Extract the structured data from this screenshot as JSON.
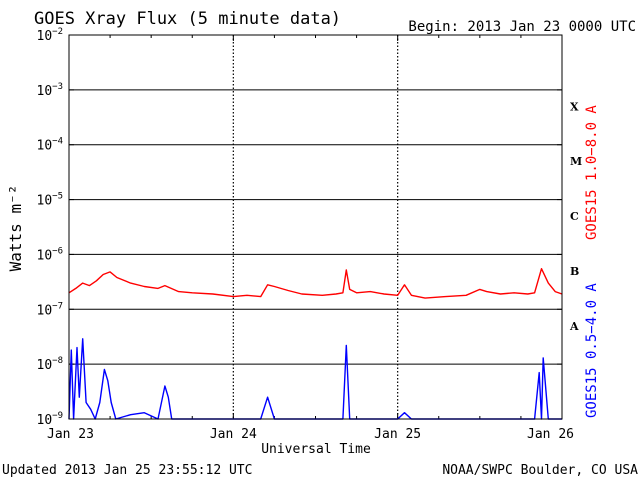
{
  "header": {
    "title": "GOES Xray Flux (5 minute data)",
    "begin": "Begin:  2013 Jan 23 0000 UTC"
  },
  "footer": {
    "updated": "Updated 2013 Jan 25 23:55:12 UTC",
    "credit": "NOAA/SWPC Boulder, CO USA"
  },
  "chart_data": {
    "type": "line",
    "title": "GOES Xray Flux (5 minute data)",
    "xlabel": "Universal Time",
    "ylabel": "Watts m⁻²",
    "y_scale": "log",
    "ylim": [
      1e-09,
      0.01
    ],
    "y_ticks": [
      {
        "value": 1e-09,
        "mant": "10",
        "exp": "−9"
      },
      {
        "value": 1e-08,
        "mant": "10",
        "exp": "−8"
      },
      {
        "value": 1e-07,
        "mant": "10",
        "exp": "−7"
      },
      {
        "value": 1e-06,
        "mant": "10",
        "exp": "−6"
      },
      {
        "value": 1e-05,
        "mant": "10",
        "exp": "−5"
      },
      {
        "value": 0.0001,
        "mant": "10",
        "exp": "−4"
      },
      {
        "value": 0.001,
        "mant": "10",
        "exp": "−3"
      },
      {
        "value": 0.01,
        "mant": "10",
        "exp": "−2"
      }
    ],
    "xlim": [
      "2013-01-23T00:00",
      "2013-01-26T00:00"
    ],
    "x_ticks": [
      {
        "value": "2013-01-23T00:00",
        "label": "Jan 23"
      },
      {
        "value": "2013-01-24T00:00",
        "label": "Jan 24"
      },
      {
        "value": "2013-01-25T00:00",
        "label": "Jan 25"
      },
      {
        "value": "2013-01-26T00:00",
        "label": "Jan 26"
      }
    ],
    "flare_classes": [
      {
        "label": "X",
        "value": 0.0005
      },
      {
        "label": "M",
        "value": 5e-05
      },
      {
        "label": "C",
        "value": 5e-06
      },
      {
        "label": "B",
        "value": 5e-07
      },
      {
        "label": "A",
        "value": 5e-08
      }
    ],
    "series": [
      {
        "name": "GOES15 1.0−8.0 A",
        "color": "#ff0000",
        "points": [
          [
            "2013-01-23T00:00",
            2e-07
          ],
          [
            "2013-01-23T01:00",
            2.4e-07
          ],
          [
            "2013-01-23T02:00",
            3e-07
          ],
          [
            "2013-01-23T03:00",
            2.7e-07
          ],
          [
            "2013-01-23T04:00",
            3.3e-07
          ],
          [
            "2013-01-23T05:00",
            4.3e-07
          ],
          [
            "2013-01-23T06:00",
            4.8e-07
          ],
          [
            "2013-01-23T07:00",
            3.8e-07
          ],
          [
            "2013-01-23T09:00",
            3e-07
          ],
          [
            "2013-01-23T11:00",
            2.6e-07
          ],
          [
            "2013-01-23T13:00",
            2.4e-07
          ],
          [
            "2013-01-23T14:00",
            2.7e-07
          ],
          [
            "2013-01-23T16:00",
            2.1e-07
          ],
          [
            "2013-01-23T18:00",
            2e-07
          ],
          [
            "2013-01-23T21:00",
            1.9e-07
          ],
          [
            "2013-01-24T00:00",
            1.7e-07
          ],
          [
            "2013-01-24T02:00",
            1.8e-07
          ],
          [
            "2013-01-24T04:00",
            1.7e-07
          ],
          [
            "2013-01-24T05:00",
            2.8e-07
          ],
          [
            "2013-01-24T06:00",
            2.6e-07
          ],
          [
            "2013-01-24T08:00",
            2.2e-07
          ],
          [
            "2013-01-24T10:00",
            1.9e-07
          ],
          [
            "2013-01-24T13:00",
            1.8e-07
          ],
          [
            "2013-01-24T15:00",
            1.9e-07
          ],
          [
            "2013-01-24T16:00",
            2e-07
          ],
          [
            "2013-01-24T16:30",
            5.2e-07
          ],
          [
            "2013-01-24T17:00",
            2.3e-07
          ],
          [
            "2013-01-24T18:00",
            2e-07
          ],
          [
            "2013-01-24T20:00",
            2.1e-07
          ],
          [
            "2013-01-24T22:00",
            1.9e-07
          ],
          [
            "2013-01-25T00:00",
            1.8e-07
          ],
          [
            "2013-01-25T01:00",
            2.8e-07
          ],
          [
            "2013-01-25T02:00",
            1.8e-07
          ],
          [
            "2013-01-25T04:00",
            1.6e-07
          ],
          [
            "2013-01-25T07:00",
            1.7e-07
          ],
          [
            "2013-01-25T10:00",
            1.8e-07
          ],
          [
            "2013-01-25T12:00",
            2.3e-07
          ],
          [
            "2013-01-25T13:00",
            2.1e-07
          ],
          [
            "2013-01-25T15:00",
            1.9e-07
          ],
          [
            "2013-01-25T17:00",
            2e-07
          ],
          [
            "2013-01-25T19:00",
            1.9e-07
          ],
          [
            "2013-01-25T20:00",
            2e-07
          ],
          [
            "2013-01-25T21:00",
            5.5e-07
          ],
          [
            "2013-01-25T22:00",
            3e-07
          ],
          [
            "2013-01-25T23:00",
            2.1e-07
          ],
          [
            "2013-01-26T00:00",
            1.9e-07
          ]
        ]
      },
      {
        "name": "GOES15 0.5−4.0 A",
        "color": "#0000ff",
        "points": [
          [
            "2013-01-23T00:00",
            1e-09
          ],
          [
            "2013-01-23T00:20",
            1.8e-08
          ],
          [
            "2013-01-23T00:40",
            1e-09
          ],
          [
            "2013-01-23T01:10",
            2e-08
          ],
          [
            "2013-01-23T01:30",
            2.5e-09
          ],
          [
            "2013-01-23T02:00",
            2.9e-08
          ],
          [
            "2013-01-23T02:30",
            2e-09
          ],
          [
            "2013-01-23T03:10",
            1.5e-09
          ],
          [
            "2013-01-23T03:50",
            1e-09
          ],
          [
            "2013-01-23T04:30",
            2e-09
          ],
          [
            "2013-01-23T05:10",
            8e-09
          ],
          [
            "2013-01-23T05:40",
            5e-09
          ],
          [
            "2013-01-23T06:10",
            2e-09
          ],
          [
            "2013-01-23T06:50",
            1e-09
          ],
          [
            "2013-01-23T09:00",
            1.2e-09
          ],
          [
            "2013-01-23T11:00",
            1.3e-09
          ],
          [
            "2013-01-23T13:00",
            1e-09
          ],
          [
            "2013-01-23T14:00",
            4e-09
          ],
          [
            "2013-01-23T14:30",
            2.5e-09
          ],
          [
            "2013-01-23T15:00",
            1e-09
          ],
          [
            "2013-01-24T00:00",
            1e-09
          ],
          [
            "2013-01-24T04:00",
            1e-09
          ],
          [
            "2013-01-24T05:00",
            2.5e-09
          ],
          [
            "2013-01-24T06:00",
            1e-09
          ],
          [
            "2013-01-24T13:00",
            1e-09
          ],
          [
            "2013-01-24T16:00",
            1e-09
          ],
          [
            "2013-01-24T16:30",
            2.2e-08
          ],
          [
            "2013-01-24T17:00",
            1e-09
          ],
          [
            "2013-01-25T00:00",
            1e-09
          ],
          [
            "2013-01-25T01:00",
            1.3e-09
          ],
          [
            "2013-01-25T02:00",
            1e-09
          ],
          [
            "2013-01-25T20:00",
            1e-09
          ],
          [
            "2013-01-25T20:40",
            7e-09
          ],
          [
            "2013-01-25T21:00",
            1e-09
          ],
          [
            "2013-01-25T21:15",
            1.3e-08
          ],
          [
            "2013-01-25T22:00",
            1e-09
          ],
          [
            "2013-01-26T00:00",
            1e-09
          ]
        ]
      }
    ],
    "grid": true,
    "legend": "right, vertical text"
  }
}
